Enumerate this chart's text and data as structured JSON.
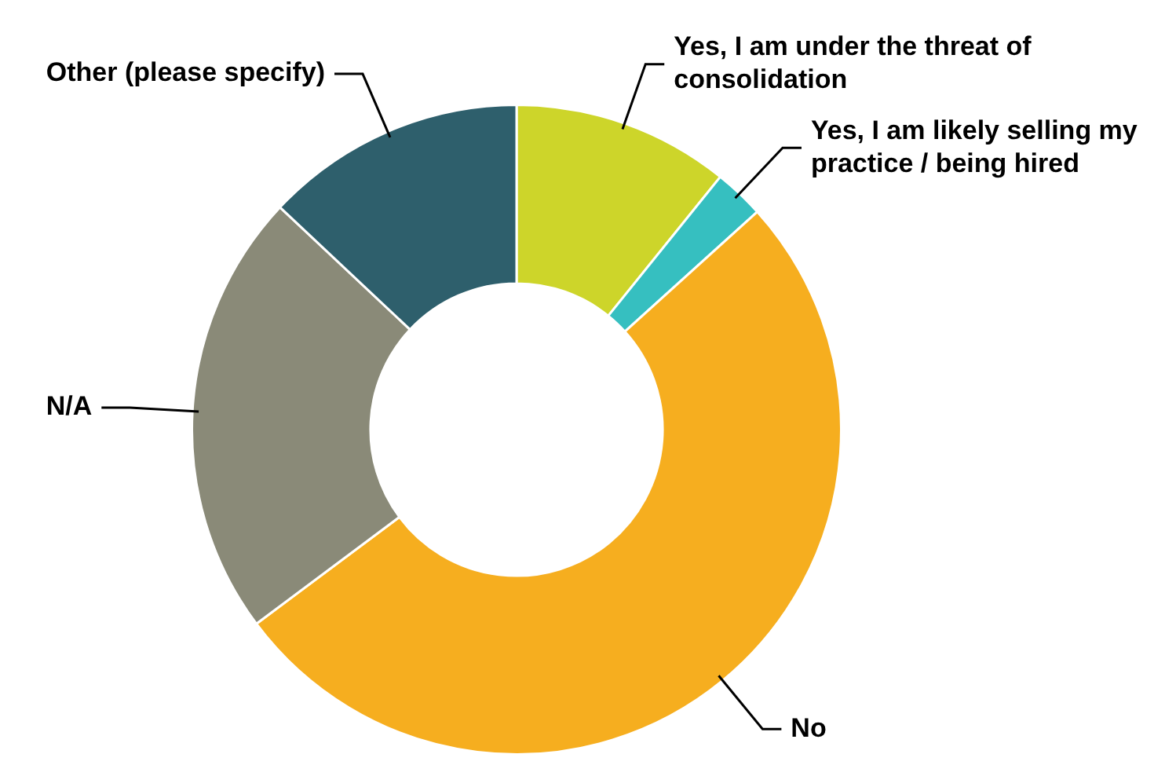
{
  "chart_data": {
    "type": "donut",
    "categories": [
      "Yes, I am under the threat of consolidation",
      "Yes, I am likely selling my practice / being hired",
      "No",
      "N/A",
      "Other (please specify)"
    ],
    "values": [
      10.8,
      2.5,
      51.5,
      22.2,
      13.0
    ],
    "colors": [
      "#cdd52a",
      "#36bfc0",
      "#f6ae1f",
      "#8a8a78",
      "#2e5f6c"
    ],
    "legend": false
  }
}
